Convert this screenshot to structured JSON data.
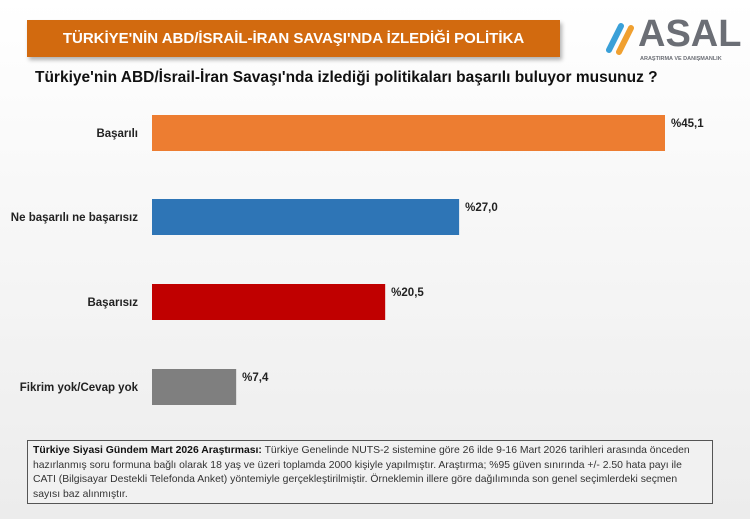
{
  "header": {
    "title": "TÜRKİYE'NİN ABD/İSRAİL-İRAN SAVAŞI'NDA İZLEDİĞİ POLİTİKA"
  },
  "logo": {
    "name": "ASAL",
    "subtitle": "ARAŞTIRMA VE DANIŞMANLIK"
  },
  "chart_data": {
    "type": "bar",
    "orientation": "horizontal",
    "title": "Türkiye'nin ABD/İsrail-İran Savaşı'nda izlediği politikaları başarılı buluyor musunuz ?",
    "categories": [
      "Başarılı",
      "Ne başarılı ne başarısız",
      "Başarısız",
      "Fikrim yok/Cevap yok"
    ],
    "values": [
      45.1,
      27.0,
      20.5,
      7.4
    ],
    "labels": [
      "%45,1",
      "%27,0",
      "%20,5",
      "%7,4"
    ],
    "colors": [
      "#ED7D31",
      "#2E75B6",
      "#C00000",
      "#7F7F7F"
    ],
    "xlim": [
      0,
      45.1
    ],
    "grid": false
  },
  "note": {
    "bold": "Türkiye Siyasi Gündem Mart 2026 Araştırması:",
    "text": " Türkiye Genelinde NUTS-2 sistemine göre 26 ilde 9-16 Mart 2026 tarihleri arasında önceden hazırlanmış soru formuna bağlı olarak 18 yaş ve üzeri toplamda 2000 kişiyle yapılmıştır. Araştırma; %95 güven sınırında +/- 2.50 hata payı ile CATI (Bilgisayar Destekli Telefonda Anket) yöntemiyle gerçekleştirilmiştir. Örneklemin illere göre dağılımında son genel seçimlerdeki seçmen sayısı baz alınmıştır."
  }
}
